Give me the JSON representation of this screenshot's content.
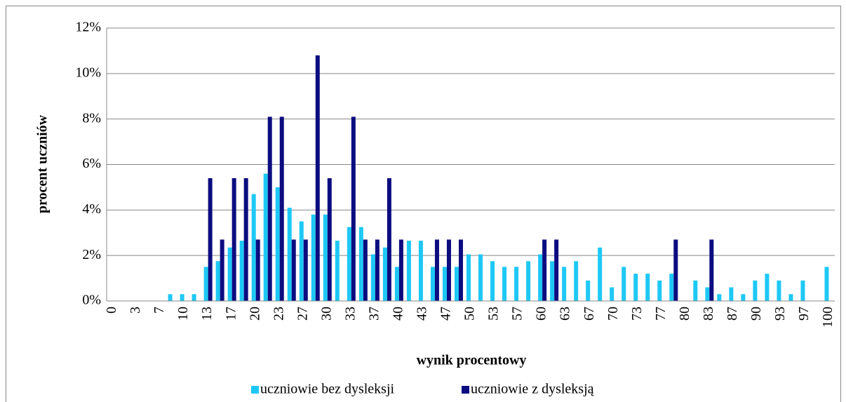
{
  "chart_data": {
    "type": "bar",
    "x_label": "wynik procentowy",
    "y_label": "procent uczniów",
    "categories": [
      "0",
      null,
      "3",
      null,
      "7",
      null,
      "10",
      null,
      "13",
      null,
      "17",
      null,
      "20",
      null,
      "23",
      null,
      "27",
      null,
      "30",
      null,
      "33",
      null,
      "37",
      null,
      "40",
      null,
      "43",
      null,
      "47",
      null,
      "50",
      null,
      "53",
      null,
      "57",
      null,
      "60",
      null,
      "63",
      null,
      "67",
      null,
      "70",
      null,
      "73",
      null,
      "77",
      null,
      "80",
      null,
      "83",
      null,
      "87",
      null,
      "90",
      null,
      "93",
      null,
      "97",
      null,
      "100"
    ],
    "series": [
      {
        "name": "uczniowie bez dysleksji",
        "color": "#1ec8f5",
        "values": [
          0,
          0,
          0,
          0,
          0,
          0.3,
          0.3,
          0.3,
          1.5,
          1.75,
          2.35,
          2.65,
          4.7,
          5.6,
          5.0,
          4.1,
          3.5,
          3.8,
          3.8,
          2.65,
          3.25,
          3.25,
          2.05,
          2.35,
          1.5,
          2.65,
          2.65,
          1.5,
          1.5,
          1.5,
          2.05,
          2.05,
          1.75,
          1.5,
          1.5,
          1.75,
          2.05,
          1.75,
          1.5,
          1.75,
          0.9,
          2.35,
          0.6,
          1.5,
          1.2,
          1.2,
          0.9,
          1.2,
          0,
          0.9,
          0.6,
          0.3,
          0.6,
          0.3,
          0.9,
          1.2,
          0.9,
          0.3,
          0.9,
          0,
          1.5
        ]
      },
      {
        "name": "uczniowie z dysleksją",
        "color": "#0c0c80",
        "values": [
          0,
          0,
          0,
          0,
          0,
          0,
          0,
          0,
          5.4,
          2.7,
          5.4,
          5.4,
          2.7,
          8.1,
          8.1,
          2.7,
          2.7,
          10.8,
          5.4,
          0,
          8.1,
          2.7,
          2.7,
          5.4,
          2.7,
          0,
          0,
          2.7,
          2.7,
          2.7,
          0,
          0,
          0,
          0,
          0,
          0,
          2.7,
          2.7,
          0,
          0,
          0,
          0,
          0,
          0,
          0,
          0,
          0,
          2.7,
          0,
          0,
          2.7,
          0,
          0,
          0,
          0,
          0,
          0,
          0,
          0,
          0,
          0
        ]
      }
    ],
    "ylim": [
      0,
      12
    ],
    "yticks": [
      {
        "value": 0,
        "label": "0%"
      },
      {
        "value": 2,
        "label": "2%"
      },
      {
        "value": 4,
        "label": "4%"
      },
      {
        "value": 6,
        "label": "6%"
      },
      {
        "value": 8,
        "label": "8%"
      },
      {
        "value": 10,
        "label": "10%"
      },
      {
        "value": 12,
        "label": "12%"
      }
    ],
    "grid": true,
    "legend": "bottom"
  }
}
